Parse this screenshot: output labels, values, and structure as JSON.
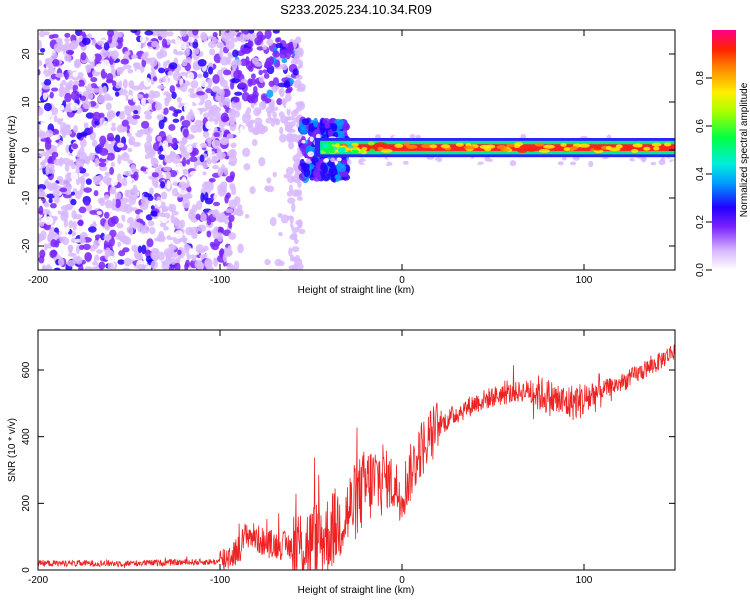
{
  "title": "S233.2025.234.10.34.R09",
  "chart_data": [
    {
      "type": "heatmap",
      "name": "spectrogram",
      "xlabel": "Height of straight line (km)",
      "ylabel": "Frequency (Hz)",
      "xlim": [
        -200,
        150
      ],
      "ylim": [
        -25,
        25
      ],
      "xticks": [
        -200,
        -100,
        0,
        100
      ],
      "yticks": [
        -20,
        -10,
        0,
        10,
        20
      ],
      "colorbar": {
        "label": "Normalized spectral amplitude",
        "range": [
          0,
          1
        ],
        "ticks": [
          "0.0",
          "0.2",
          "0.4",
          "0.6",
          "0.8"
        ]
      },
      "features": {
        "line_frequency_hz": 0.5,
        "line_start_km": -50,
        "noise_bands_km": [
          [
            -200,
            -100
          ],
          [
            -100,
            -55
          ]
        ]
      }
    },
    {
      "type": "line",
      "name": "snr",
      "xlabel": "Height of straight line (km)",
      "ylabel": "SNR (10 * v/v)",
      "xlim": [
        -200,
        150
      ],
      "ylim": [
        0,
        720
      ],
      "xticks": [
        -200,
        -100,
        0,
        100
      ],
      "yticks": [
        0,
        200,
        400,
        600
      ],
      "color": "#ee2222",
      "trend": {
        "x": [
          -200,
          -150,
          -100,
          -90,
          -85,
          -75,
          -60,
          -50,
          -40,
          -30,
          -20,
          -10,
          0,
          10,
          20,
          30,
          40,
          50,
          60,
          70,
          80,
          90,
          100,
          110,
          120,
          130,
          140,
          150
        ],
        "y": [
          20,
          20,
          25,
          60,
          110,
          80,
          70,
          80,
          110,
          170,
          250,
          280,
          230,
          360,
          430,
          470,
          500,
          520,
          530,
          540,
          520,
          500,
          510,
          540,
          560,
          590,
          620,
          660
        ]
      }
    }
  ]
}
